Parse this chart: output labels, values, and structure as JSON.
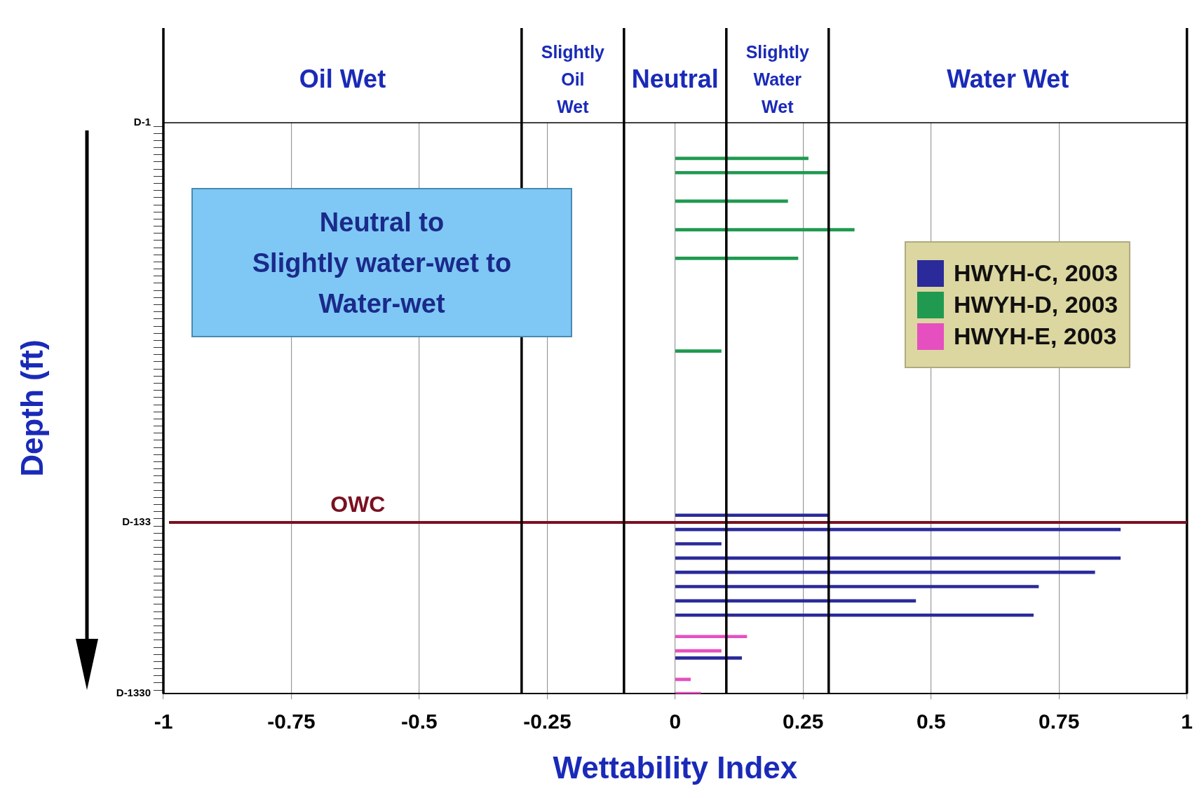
{
  "chart_data": {
    "type": "bar",
    "orientation": "horizontal",
    "xlabel": "Wettability Index",
    "ylabel": "Depth (ft)",
    "categories": [
      "D-1",
      null,
      null,
      null,
      null,
      null,
      null,
      null,
      null,
      null,
      null,
      null,
      null,
      null,
      null,
      null,
      null,
      null,
      null,
      null,
      null,
      null,
      null,
      null,
      null,
      null,
      null,
      null,
      null,
      null,
      null,
      null,
      null,
      null,
      null,
      null,
      null,
      null,
      null,
      null,
      null,
      null,
      null,
      null,
      null,
      null,
      null,
      null,
      null,
      null,
      null,
      null,
      null,
      null,
      null,
      null,
      "D-133",
      null,
      null,
      null,
      null,
      null,
      null,
      null,
      null,
      null,
      null,
      null,
      null,
      null,
      null,
      null,
      null,
      null,
      null,
      null,
      null,
      null,
      null,
      null,
      "D-1330"
    ],
    "series": [
      {
        "name": "HWYH-C, 2003",
        "color": "#2a2a9a",
        "values": [
          null,
          null,
          null,
          null,
          null,
          null,
          null,
          null,
          null,
          null,
          null,
          null,
          null,
          null,
          null,
          null,
          null,
          null,
          null,
          null,
          null,
          null,
          null,
          null,
          null,
          null,
          null,
          null,
          null,
          null,
          null,
          null,
          null,
          null,
          null,
          null,
          null,
          null,
          null,
          null,
          null,
          null,
          null,
          null,
          null,
          null,
          null,
          null,
          null,
          null,
          null,
          null,
          null,
          null,
          null,
          0.3,
          null,
          0.87,
          null,
          0.09,
          null,
          0.87,
          null,
          0.82,
          null,
          0.71,
          null,
          0.47,
          null,
          0.7,
          null,
          null,
          null,
          null,
          null,
          0.13,
          null,
          null,
          null,
          null,
          null
        ]
      },
      {
        "name": "HWYH-D, 2003",
        "color": "#1f9a50",
        "values": [
          null,
          null,
          null,
          null,
          null,
          0.26,
          null,
          0.3,
          null,
          null,
          null,
          0.22,
          null,
          null,
          null,
          0.35,
          null,
          null,
          null,
          0.24,
          null,
          null,
          null,
          null,
          null,
          null,
          null,
          null,
          null,
          null,
          null,
          null,
          0.09,
          null,
          null,
          null,
          null,
          null,
          null,
          null,
          null,
          null,
          null,
          null,
          null,
          null,
          null,
          null,
          null,
          null,
          null,
          null,
          null,
          null,
          null,
          null,
          null,
          null,
          null,
          null,
          null,
          null,
          null,
          null,
          null,
          null,
          null,
          null,
          null,
          null,
          null,
          null,
          null,
          null,
          null,
          null,
          null,
          null,
          null,
          null,
          null
        ]
      },
      {
        "name": "HWYH-E, 2003",
        "color": "#e64fc0",
        "values": [
          null,
          null,
          null,
          null,
          null,
          null,
          null,
          null,
          null,
          null,
          null,
          null,
          null,
          null,
          null,
          null,
          null,
          null,
          null,
          null,
          null,
          null,
          null,
          null,
          null,
          null,
          null,
          null,
          null,
          null,
          null,
          null,
          null,
          null,
          null,
          null,
          null,
          null,
          null,
          null,
          null,
          null,
          null,
          null,
          null,
          null,
          null,
          null,
          null,
          null,
          null,
          null,
          null,
          null,
          null,
          null,
          null,
          null,
          null,
          null,
          null,
          null,
          null,
          null,
          null,
          null,
          null,
          null,
          null,
          null,
          null,
          null,
          0.14,
          null,
          0.09,
          null,
          null,
          null,
          0.03,
          null,
          0.05
        ]
      }
    ],
    "xlim": [
      -1,
      1
    ],
    "xticks": [
      -1,
      -0.75,
      -0.5,
      -0.25,
      0,
      0.25,
      0.5,
      0.75,
      1
    ],
    "grid": "x",
    "legend": "right",
    "ref_lines": [
      {
        "axis": "y",
        "value": "D-133",
        "label": "OWC",
        "color": "#7a1020"
      },
      {
        "axis": "x",
        "value": -0.3,
        "color": "#000000"
      },
      {
        "axis": "x",
        "value": -0.1,
        "color": "#000000"
      },
      {
        "axis": "x",
        "value": 0.1,
        "color": "#000000"
      },
      {
        "axis": "x",
        "value": 0.3,
        "color": "#000000"
      }
    ],
    "annotations": [
      "Neutral to\nSlightly water-wet to\nWater-wet",
      "Oil Wet",
      "Slightly\nOil\nWet",
      "Neutral",
      "Slightly\nWater\nWet",
      "Water Wet"
    ]
  }
}
